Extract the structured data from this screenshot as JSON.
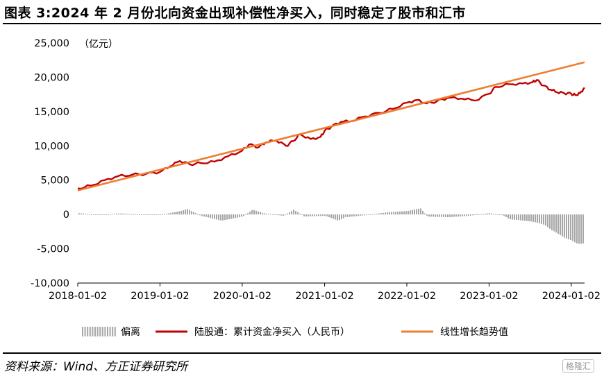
{
  "title": "图表 3:2024 年 2 月份北向资金出现补偿性净买入，同时稳定了股市和汇市",
  "source": "资料来源：Wind、方正证券研究所",
  "watermark": "格隆汇",
  "chart_data": {
    "type": "line",
    "y_unit": "（亿元）",
    "ylim": [
      -10000,
      25000
    ],
    "y_ticks": [
      {
        "value": 25000,
        "label": "25,000"
      },
      {
        "value": 20000,
        "label": "20,000"
      },
      {
        "value": 15000,
        "label": "15,000"
      },
      {
        "value": 10000,
        "label": "10,000"
      },
      {
        "value": 5000,
        "label": "5,000"
      },
      {
        "value": 0,
        "label": "0"
      },
      {
        "value": -5000,
        "label": "-5,000"
      },
      {
        "value": -10000,
        "label": "-10,000"
      }
    ],
    "xlim": [
      "2018-01-02",
      "2024-03-01"
    ],
    "x_ticks": [
      "2018-01-02",
      "2019-01-02",
      "2020-01-02",
      "2021-01-02",
      "2022-01-02",
      "2023-01-02",
      "2024-01-02"
    ],
    "grid": false,
    "legend_position": "bottom",
    "series": [
      {
        "name": "偏离",
        "kind": "bar",
        "color": "#a6a6a6",
        "x": [
          "2018-01-02",
          "2018-04-01",
          "2018-07-01",
          "2018-10-01",
          "2019-01-02",
          "2019-04-01",
          "2019-05-01",
          "2019-07-01",
          "2019-10-01",
          "2020-01-02",
          "2020-02-15",
          "2020-04-01",
          "2020-07-01",
          "2020-08-15",
          "2020-10-01",
          "2021-01-02",
          "2021-03-01",
          "2021-04-01",
          "2021-07-01",
          "2021-10-01",
          "2022-01-02",
          "2022-03-01",
          "2022-04-01",
          "2022-07-01",
          "2022-10-01",
          "2023-01-02",
          "2023-03-01",
          "2023-04-01",
          "2023-07-01",
          "2023-08-01",
          "2023-09-01",
          "2023-10-01",
          "2023-11-01",
          "2023-12-01",
          "2024-01-02",
          "2024-01-20",
          "2024-02-15",
          "2024-03-01"
        ],
        "values": [
          200,
          -100,
          150,
          0,
          -50,
          500,
          800,
          -200,
          -900,
          -300,
          700,
          200,
          -200,
          700,
          -300,
          -200,
          -900,
          -400,
          -100,
          300,
          500,
          900,
          -300,
          -400,
          -200,
          200,
          -100,
          -700,
          -1000,
          -1200,
          -1500,
          -2200,
          -2800,
          -3400,
          -3800,
          -4200,
          -4300,
          -4100
        ]
      },
      {
        "name": "陆股通：累计资金净买入（人民币）",
        "kind": "line",
        "color": "#c00000",
        "x": [
          "2018-01-02",
          "2018-03-01",
          "2018-05-01",
          "2018-07-01",
          "2018-09-01",
          "2018-11-01",
          "2019-01-02",
          "2019-02-15",
          "2019-04-01",
          "2019-05-15",
          "2019-07-01",
          "2019-09-01",
          "2019-11-01",
          "2020-01-02",
          "2020-02-01",
          "2020-03-15",
          "2020-04-15",
          "2020-06-01",
          "2020-07-15",
          "2020-08-15",
          "2020-09-15",
          "2020-11-01",
          "2020-12-15",
          "2021-01-02",
          "2021-02-01",
          "2021-03-15",
          "2021-05-01",
          "2021-07-01",
          "2021-09-01",
          "2021-11-01",
          "2022-01-02",
          "2022-02-15",
          "2022-04-01",
          "2022-05-15",
          "2022-07-01",
          "2022-09-01",
          "2022-11-01",
          "2023-01-02",
          "2023-02-01",
          "2023-04-01",
          "2023-06-01",
          "2023-07-15",
          "2023-08-01",
          "2023-09-01",
          "2023-10-01",
          "2023-11-01",
          "2023-12-01",
          "2024-01-02",
          "2024-01-20",
          "2024-02-10",
          "2024-03-01"
        ],
        "values": [
          3800,
          4200,
          5000,
          5600,
          5800,
          5900,
          6200,
          7000,
          7800,
          7300,
          7500,
          7700,
          8500,
          9300,
          10200,
          9800,
          10500,
          10800,
          10000,
          10700,
          11700,
          11000,
          11300,
          12200,
          12800,
          13500,
          13600,
          14300,
          14800,
          15400,
          16300,
          16700,
          16200,
          16500,
          17000,
          16900,
          16600,
          17600,
          18600,
          19000,
          19100,
          19300,
          19600,
          18800,
          18200,
          17800,
          17700,
          17600,
          17400,
          17700,
          18500
        ]
      },
      {
        "name": "线性增长趋势值",
        "kind": "line",
        "color": "#ed7d31",
        "x": [
          "2018-01-02",
          "2024-03-01"
        ],
        "values": [
          3500,
          22200
        ]
      }
    ]
  }
}
